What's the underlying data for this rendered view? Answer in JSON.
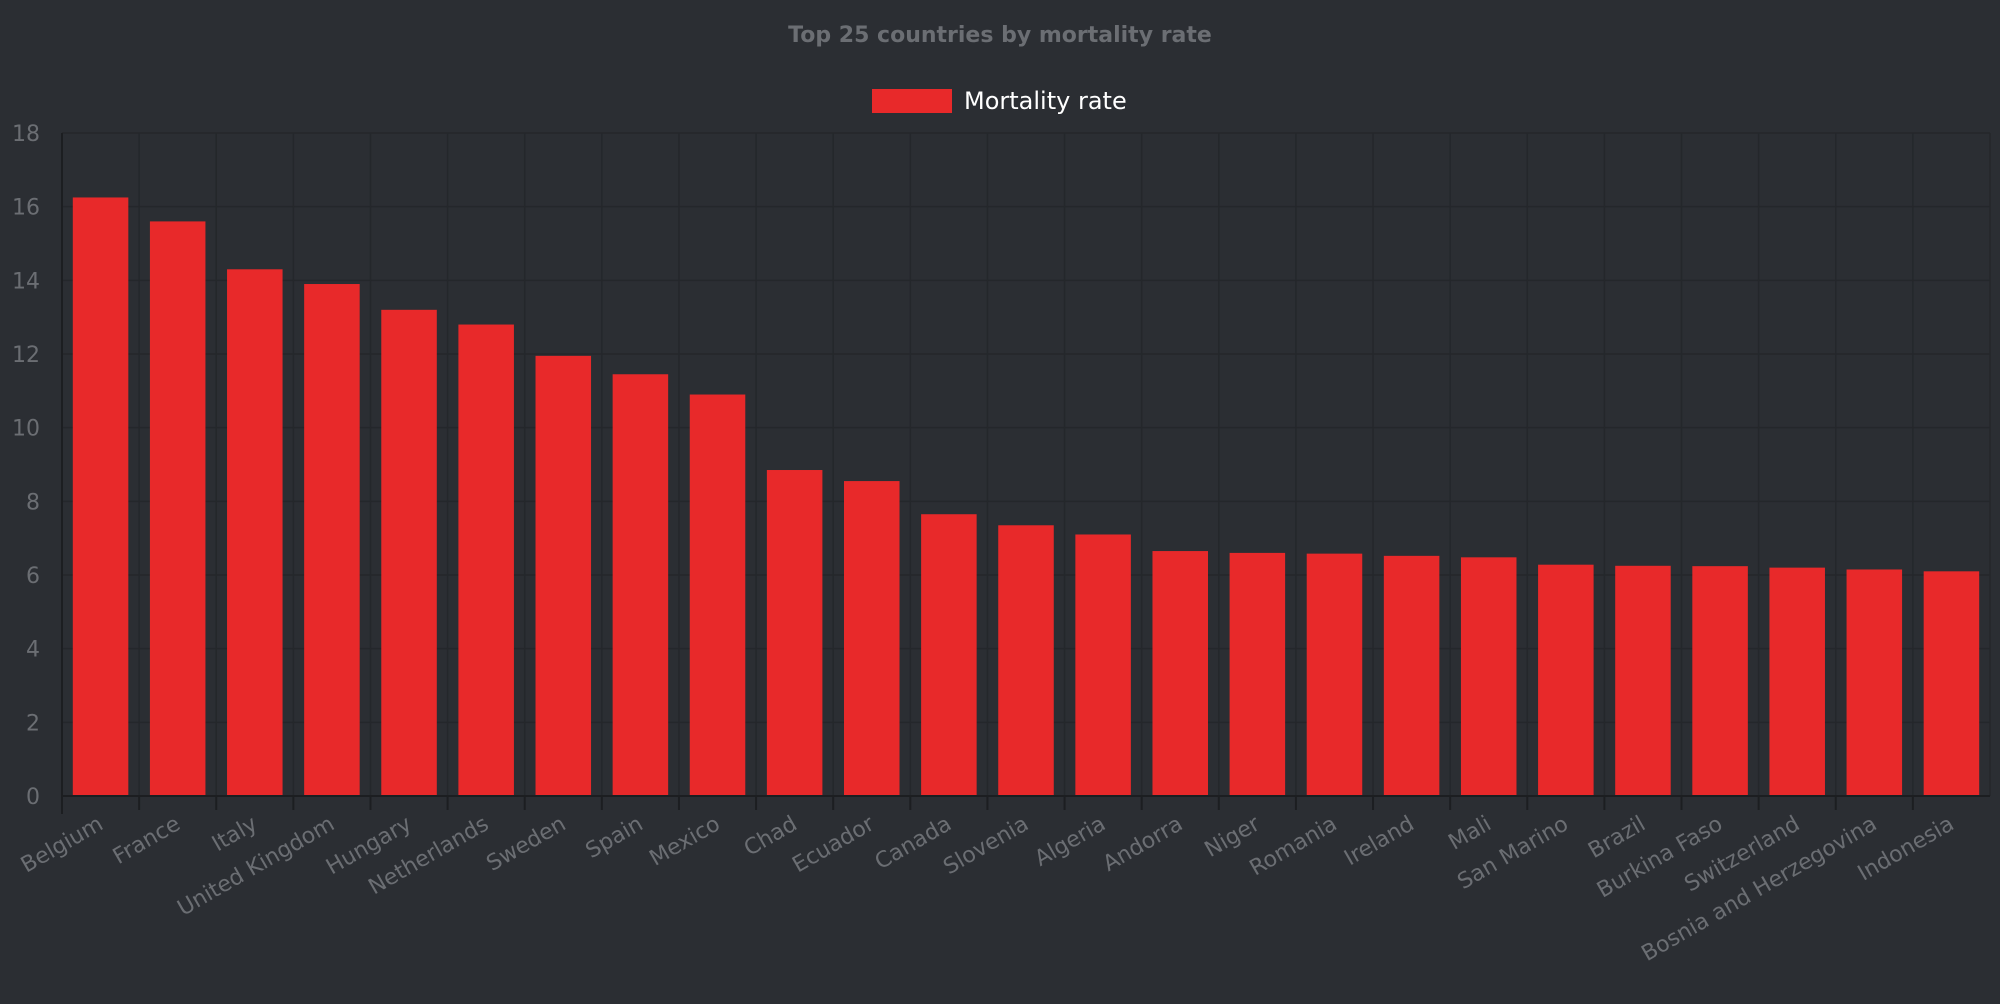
{
  "chart_data": {
    "type": "bar",
    "title": "Top 25 countries by mortality rate",
    "xlabel": "",
    "ylabel": "",
    "ylim": [
      0,
      18
    ],
    "yticks": [
      0,
      2,
      4,
      6,
      8,
      10,
      12,
      14,
      16,
      18
    ],
    "grid": true,
    "legend_position": "top-center",
    "categories": [
      "Belgium",
      "France",
      "Italy",
      "United Kingdom",
      "Hungary",
      "Netherlands",
      "Sweden",
      "Spain",
      "Mexico",
      "Chad",
      "Ecuador",
      "Canada",
      "Slovenia",
      "Algeria",
      "Andorra",
      "Niger",
      "Romania",
      "Ireland",
      "Mali",
      "San Marino",
      "Brazil",
      "Burkina Faso",
      "Switzerland",
      "Bosnia and Herzegovina",
      "Indonesia"
    ],
    "series": [
      {
        "name": "Mortality rate",
        "color": "#e8292a",
        "values": [
          16.25,
          15.6,
          14.3,
          13.9,
          13.2,
          12.8,
          11.95,
          11.45,
          10.9,
          8.85,
          8.55,
          7.65,
          7.35,
          7.1,
          6.65,
          6.6,
          6.58,
          6.52,
          6.48,
          6.28,
          6.25,
          6.24,
          6.2,
          6.15,
          6.1
        ]
      }
    ]
  },
  "colors": {
    "background": "#2b2e33",
    "grid": "#24272b",
    "axis_text": "#6b6e73",
    "title_text": "#6b6e73",
    "legend_text": "#ffffff"
  }
}
